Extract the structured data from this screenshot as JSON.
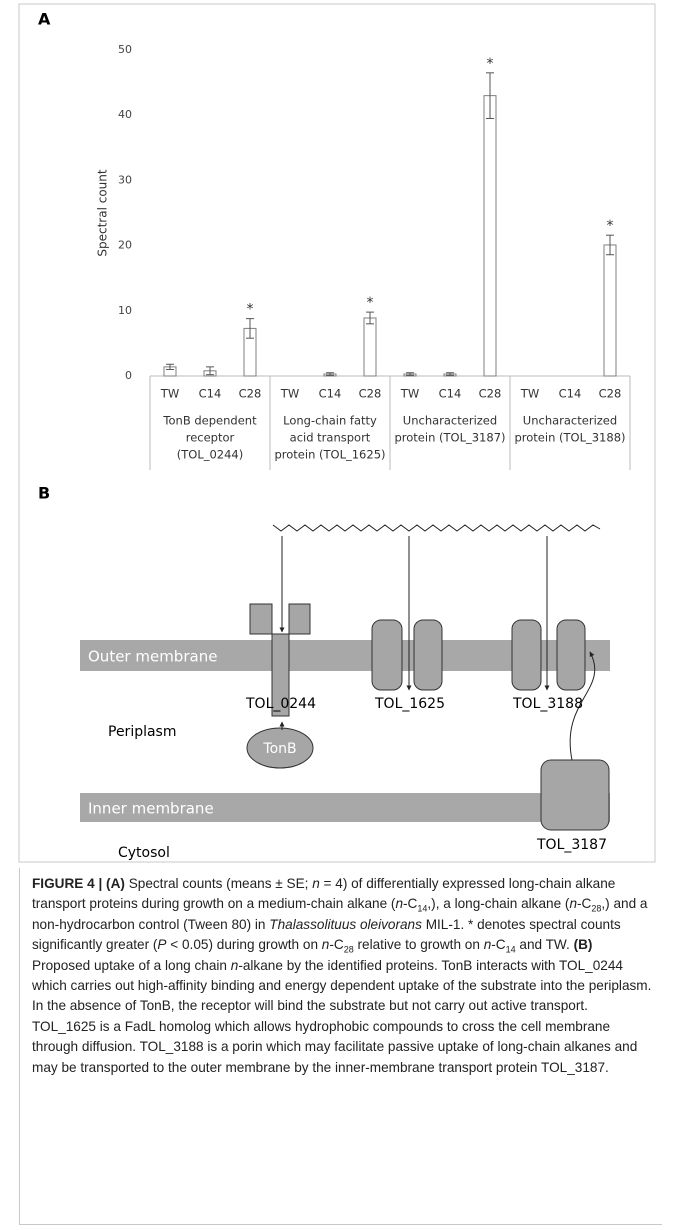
{
  "chart_data": {
    "type": "bar",
    "panel": "A",
    "y_label": "Spectral count",
    "categories": [
      "TW",
      "C14",
      "C28",
      "TW",
      "C14",
      "C28",
      "TW",
      "C14",
      "C28",
      "TW",
      "C14",
      "C28"
    ],
    "groups": [
      [
        "TonB dependent",
        "receptor",
        "(TOL_0244)"
      ],
      [
        "Long-chain fatty",
        "acid transport",
        "protein (TOL_1625)"
      ],
      [
        "Uncharacterized",
        "protein (TOL_3187)"
      ],
      [
        "Uncharacterized",
        "protein (TOL_3188)"
      ]
    ],
    "values": [
      1.4,
      0.8,
      7.3,
      0,
      0.3,
      8.9,
      0.3,
      0.3,
      43,
      0,
      0,
      20.1
    ],
    "errors": [
      0.4,
      0.6,
      1.5,
      0,
      0.2,
      0.9,
      0.2,
      0.2,
      3.5,
      0,
      0,
      1.5
    ],
    "significant": [
      false,
      false,
      true,
      false,
      false,
      true,
      false,
      false,
      true,
      false,
      false,
      true
    ],
    "significant_marker": "*",
    "color": "#ffffff",
    "edge_color": "#7f7f7f",
    "ylim": [
      0,
      50
    ],
    "yticks": [
      0,
      10,
      20,
      30,
      40,
      50
    ],
    "grid": false
  },
  "diagram": {
    "panel": "B",
    "outer_membrane": "Outer membrane",
    "inner_membrane": "Inner membrane",
    "periplasm": "Periplasm",
    "cytosol": "Cytosol",
    "tonb": "TonB",
    "proteins": [
      "TOL_0244",
      "TOL_1625",
      "TOL_3188",
      "TOL_3187"
    ]
  },
  "caption": [
    {
      "text": "FIGURE 4 | (A)",
      "style": "b"
    },
    {
      "text": " Spectral counts (means ± SE; "
    },
    {
      "text": "n",
      "style": "i"
    },
    {
      "text": " = 4) of differentially expressed long-chain alkane transport proteins during growth on a medium-chain alkane ("
    },
    {
      "text": "n",
      "style": "i"
    },
    {
      "text": "-C"
    },
    {
      "text": "14",
      "style": "sub"
    },
    {
      "text": ",), a long-chain alkane ("
    },
    {
      "text": "n",
      "style": "i"
    },
    {
      "text": "-C"
    },
    {
      "text": "28",
      "style": "sub"
    },
    {
      "text": ",) and a non-hydrocarbon control (Tween 80) in "
    },
    {
      "text": "Thalassolituus oleivorans",
      "style": "i"
    },
    {
      "text": " MIL-1. * denotes spectral counts significantly greater ("
    },
    {
      "text": "P",
      "style": "i"
    },
    {
      "text": " < 0.05) during growth on "
    },
    {
      "text": "n",
      "style": "i"
    },
    {
      "text": "-C"
    },
    {
      "text": "28",
      "style": "sub"
    },
    {
      "text": " relative to growth on "
    },
    {
      "text": "n",
      "style": "i"
    },
    {
      "text": "-C"
    },
    {
      "text": "14",
      "style": "sub"
    },
    {
      "text": " and TW. "
    },
    {
      "text": "(B)",
      "style": "b"
    },
    {
      "text": " Proposed uptake of a long chain "
    },
    {
      "text": "n",
      "style": "i"
    },
    {
      "text": "-alkane by the identified proteins. TonB interacts with TOL_0244 which carries out high-affinity binding and energy dependent uptake of the substrate into the periplasm. In the absence of TonB, the receptor will bind the substrate but not carry out active transport. TOL_1625 is a FadL homolog which allows hydrophobic compounds to cross the cell membrane through diffusion. TOL_3188 is a porin which may facilitate passive uptake of long-chain alkanes and may be transported to the outer membrane by the inner-membrane transport protein TOL_3187."
    }
  ]
}
